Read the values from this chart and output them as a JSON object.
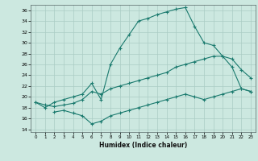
{
  "bg_color": "#cce8e0",
  "grid_color": "#aaccc4",
  "line_color": "#1a7a6e",
  "xlabel": "Humidex (Indice chaleur)",
  "xlim": [
    -0.5,
    23.5
  ],
  "ylim": [
    13.5,
    37.0
  ],
  "yticks": [
    14,
    16,
    18,
    20,
    22,
    24,
    26,
    28,
    30,
    32,
    34,
    36
  ],
  "xticks": [
    0,
    1,
    2,
    3,
    4,
    5,
    6,
    7,
    8,
    9,
    10,
    11,
    12,
    13,
    14,
    15,
    16,
    17,
    18,
    19,
    20,
    21,
    22,
    23
  ],
  "curve1_x": [
    0,
    1,
    2,
    3,
    4,
    5,
    6,
    7,
    8,
    9,
    10,
    11,
    12,
    13,
    14,
    15,
    16,
    17,
    18,
    19,
    20,
    21,
    22,
    23
  ],
  "curve1_y": [
    19.0,
    18.0,
    19.0,
    19.5,
    20.0,
    20.5,
    22.5,
    19.5,
    26.0,
    29.0,
    31.5,
    34.0,
    34.5,
    35.2,
    35.7,
    36.2,
    36.5,
    33.0,
    30.0,
    29.5,
    27.5,
    25.5,
    21.5,
    21.0
  ],
  "curve2_x": [
    0,
    1,
    2,
    3,
    4,
    5,
    6,
    7,
    8,
    9,
    10,
    11,
    12,
    13,
    14,
    15,
    16,
    17,
    18,
    19,
    20,
    21,
    22,
    23
  ],
  "curve2_y": [
    19.0,
    18.5,
    18.2,
    18.5,
    18.8,
    19.5,
    21.0,
    20.5,
    21.5,
    22.0,
    22.5,
    23.0,
    23.5,
    24.0,
    24.5,
    25.5,
    26.0,
    26.5,
    27.0,
    27.5,
    27.5,
    27.0,
    25.0,
    23.5
  ],
  "curve3_x": [
    2,
    3,
    4,
    5,
    6,
    7,
    8,
    9,
    10,
    11,
    12,
    13,
    14,
    15,
    16,
    17,
    18,
    19,
    20,
    21,
    22,
    23
  ],
  "curve3_y": [
    17.2,
    17.5,
    17.0,
    16.5,
    15.0,
    15.5,
    16.5,
    17.0,
    17.5,
    18.0,
    18.5,
    19.0,
    19.5,
    20.0,
    20.5,
    20.0,
    19.5,
    20.0,
    20.5,
    21.0,
    21.5,
    21.0
  ],
  "figsize": [
    3.2,
    2.0
  ],
  "dpi": 100
}
